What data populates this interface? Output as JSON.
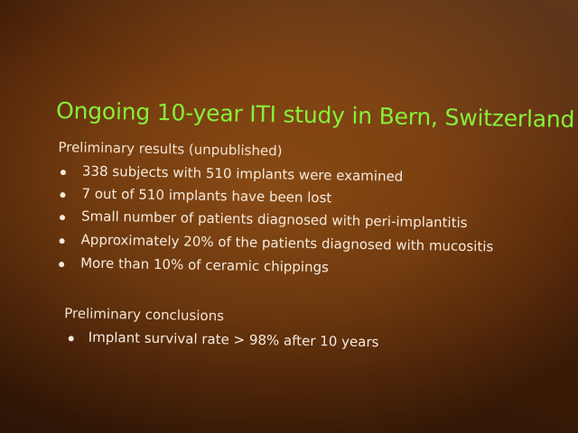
{
  "slide": {
    "title": "Ongoing 10-year ITI study in Bern, Switzerland",
    "sections": [
      {
        "heading": "Preliminary results (unpublished)",
        "bullets": [
          "338 subjects with 510 implants were examined",
          "7 out of 510 implants have been lost",
          "Small number of patients diagnosed with peri-implantitis",
          "Approximately 20% of the patients diagnosed with mucositis",
          "More than 10% of ceramic chippings"
        ]
      },
      {
        "heading": "Preliminary conclusions",
        "bullets": [
          "Implant survival rate > 98% after 10 years"
        ]
      }
    ]
  }
}
